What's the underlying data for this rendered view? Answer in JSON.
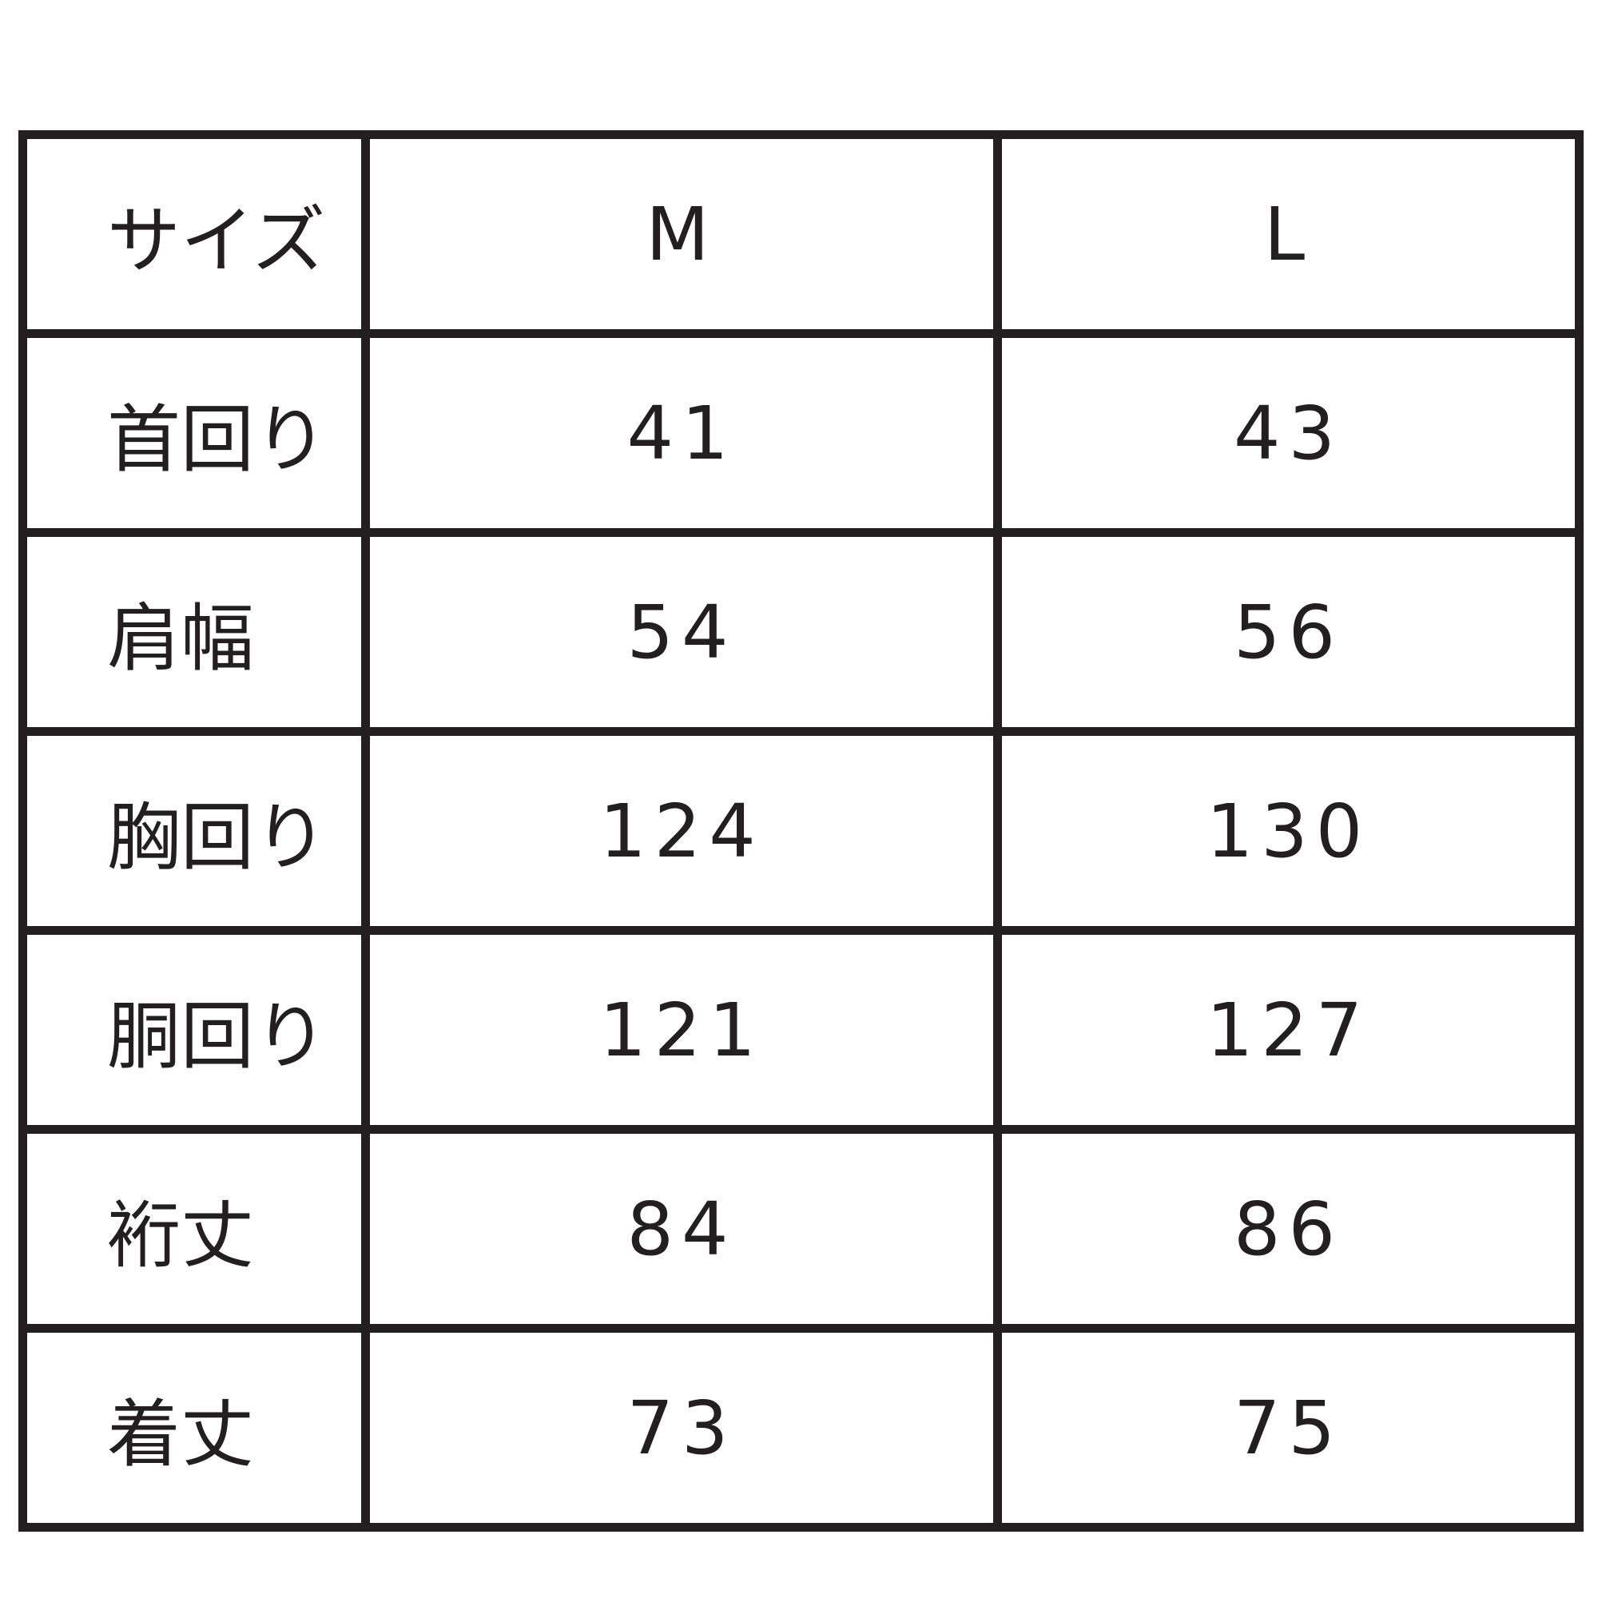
{
  "header": {
    "label": "サイズ",
    "sizes": [
      "M",
      "L"
    ]
  },
  "rows": [
    {
      "label": "首回り",
      "values": [
        "41",
        "43"
      ]
    },
    {
      "label": "肩幅",
      "values": [
        "54",
        "56"
      ]
    },
    {
      "label": "胸回り",
      "values": [
        "124",
        "130"
      ]
    },
    {
      "label": "胴回り",
      "values": [
        "121",
        "127"
      ]
    },
    {
      "label": "裄丈",
      "values": [
        "84",
        "86"
      ]
    },
    {
      "label": "着丈",
      "values": [
        "73",
        "75"
      ]
    }
  ]
}
